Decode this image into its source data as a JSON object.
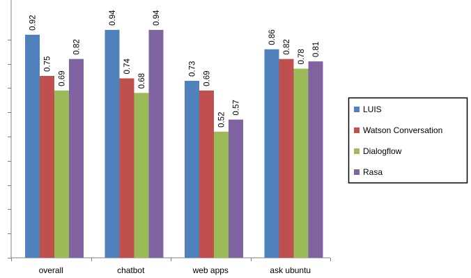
{
  "chart_data": {
    "type": "bar",
    "title": "",
    "xlabel": "",
    "ylabel": "",
    "categories": [
      "overall",
      "chatbot",
      "web apps",
      "ask ubuntu"
    ],
    "ylim": [
      0,
      0.95
    ],
    "grid": false,
    "legend_position": "right",
    "series": [
      {
        "name": "LUIS",
        "color": "#4f81bd",
        "values": [
          0.92,
          0.94,
          0.73,
          0.86
        ]
      },
      {
        "name": "Watson Conversation",
        "color": "#c0504d",
        "values": [
          0.75,
          0.74,
          0.69,
          0.82
        ]
      },
      {
        "name": "Dialogflow",
        "color": "#9bbb59",
        "values": [
          0.69,
          0.68,
          0.52,
          0.78
        ]
      },
      {
        "name": "Rasa",
        "color": "#8064a2",
        "values": [
          0.82,
          0.94,
          0.57,
          0.81
        ]
      }
    ]
  }
}
